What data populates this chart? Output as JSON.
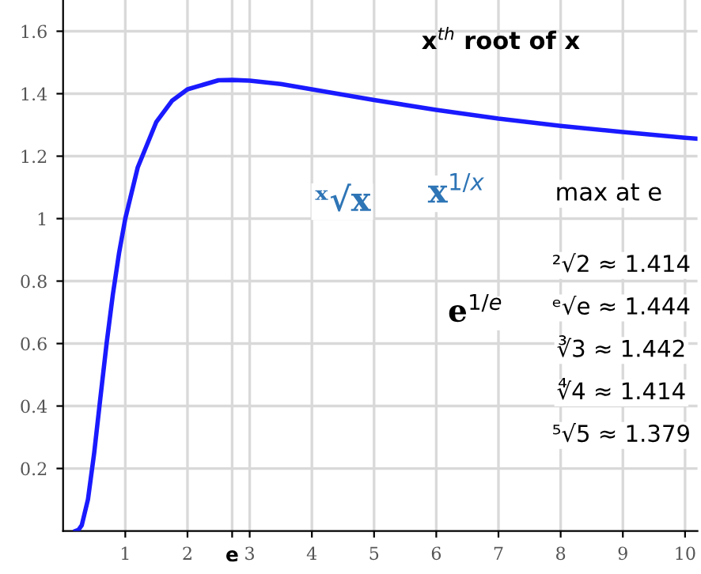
{
  "chart_data": {
    "type": "line",
    "title": "x$^{th}$ root of x",
    "x": [
      0.2,
      0.25,
      0.3,
      0.4,
      0.5,
      0.6,
      0.7,
      0.8,
      0.9,
      1,
      1.2,
      1.5,
      1.75,
      2,
      2.5,
      2.718,
      3,
      3.5,
      4,
      5,
      6,
      7,
      8,
      9,
      10,
      10.2
    ],
    "series": [
      {
        "color": "#1a1aff",
        "values": [
          0.0,
          0.004,
          0.018,
          0.101,
          0.25,
          0.427,
          0.601,
          0.757,
          0.89,
          1.0,
          1.164,
          1.31,
          1.377,
          1.414,
          1.443,
          1.444,
          1.442,
          1.431,
          1.414,
          1.38,
          1.348,
          1.32,
          1.297,
          1.277,
          1.259,
          1.256
        ]
      }
    ],
    "xlim": [
      0,
      10.2
    ],
    "ylim": [
      0,
      1.7
    ],
    "xticks": [
      1,
      2,
      {
        "value": 2.718,
        "label": "e"
      },
      3,
      4,
      5,
      6,
      7,
      8,
      9,
      10
    ],
    "yticks": [
      0.2,
      0.4,
      0.6,
      0.8,
      1,
      1.2,
      1.4,
      1.6
    ],
    "grid": true,
    "marker": "none",
    "line_style": "solid",
    "annotations": [
      "ˣ√x",
      "x$^{1/x}$",
      "max at e",
      "e$^{1/e}$",
      "²√2 ≈ 1.414",
      "ᵉ√e ≈ 1.444",
      "∛3 ≈ 1.442",
      "∜4 ≈ 1.414",
      "⁵√5 ≈ 1.379"
    ]
  }
}
